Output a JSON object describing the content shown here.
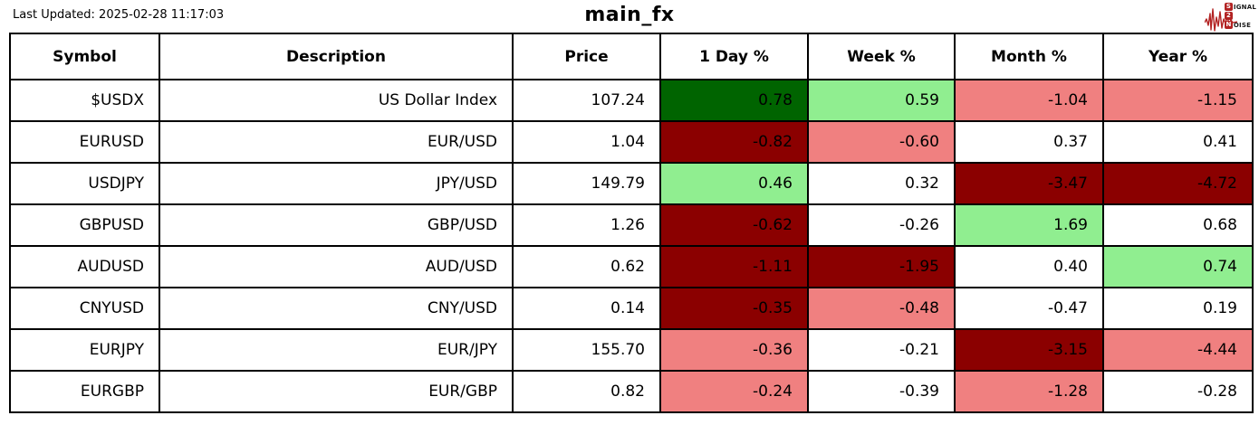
{
  "header": {
    "last_updated": "Last Updated: 2025-02-28 11:17:03",
    "title": "main_fx"
  },
  "logo": {
    "line1_initial": "S",
    "line1_rest": "IGNAL",
    "line2_initial": "2",
    "line2_rest": "",
    "line3_initial": "N",
    "line3_rest": "OISE",
    "brand_color": "#b22222"
  },
  "chart_data": {
    "type": "table",
    "title": "main_fx",
    "columns": [
      "Symbol",
      "Description",
      "Price",
      "1 Day %",
      "Week %",
      "Month %",
      "Year %"
    ],
    "rows": [
      {
        "symbol": "$USDX",
        "description": "US Dollar Index",
        "price": 107.24,
        "pct": [
          0.78,
          0.59,
          -1.04,
          -1.15
        ],
        "tones": [
          "strong_up",
          "up",
          "down",
          "down"
        ]
      },
      {
        "symbol": "EURUSD",
        "description": "EUR/USD",
        "price": 1.04,
        "pct": [
          -0.82,
          -0.6,
          0.37,
          0.41
        ],
        "tones": [
          "strong_down",
          "down",
          "neutral",
          "neutral"
        ]
      },
      {
        "symbol": "USDJPY",
        "description": "JPY/USD",
        "price": 149.79,
        "pct": [
          0.46,
          0.32,
          -3.47,
          -4.72
        ],
        "tones": [
          "up",
          "neutral",
          "strong_down",
          "strong_down"
        ]
      },
      {
        "symbol": "GBPUSD",
        "description": "GBP/USD",
        "price": 1.26,
        "pct": [
          -0.62,
          -0.26,
          1.69,
          0.68
        ],
        "tones": [
          "strong_down",
          "neutral",
          "up",
          "neutral"
        ]
      },
      {
        "symbol": "AUDUSD",
        "description": "AUD/USD",
        "price": 0.62,
        "pct": [
          -1.11,
          -1.95,
          0.4,
          0.74
        ],
        "tones": [
          "strong_down",
          "strong_down",
          "neutral",
          "up"
        ]
      },
      {
        "symbol": "CNYUSD",
        "description": "CNY/USD",
        "price": 0.14,
        "pct": [
          -0.35,
          -0.48,
          -0.47,
          0.19
        ],
        "tones": [
          "strong_down",
          "down",
          "neutral",
          "neutral"
        ]
      },
      {
        "symbol": "EURJPY",
        "description": "EUR/JPY",
        "price": 155.7,
        "pct": [
          -0.36,
          -0.21,
          -3.15,
          -4.44
        ],
        "tones": [
          "down",
          "neutral",
          "strong_down",
          "down"
        ]
      },
      {
        "symbol": "EURGBP",
        "description": "EUR/GBP",
        "price": 0.82,
        "pct": [
          -0.24,
          -0.39,
          -1.28,
          -0.28
        ],
        "tones": [
          "down",
          "neutral",
          "down",
          "neutral"
        ]
      }
    ],
    "tone_colors": {
      "strong_up": "#006400",
      "up": "#90ee90",
      "down": "#f08080",
      "strong_down": "#8b0000",
      "neutral": "#ffffff"
    }
  }
}
